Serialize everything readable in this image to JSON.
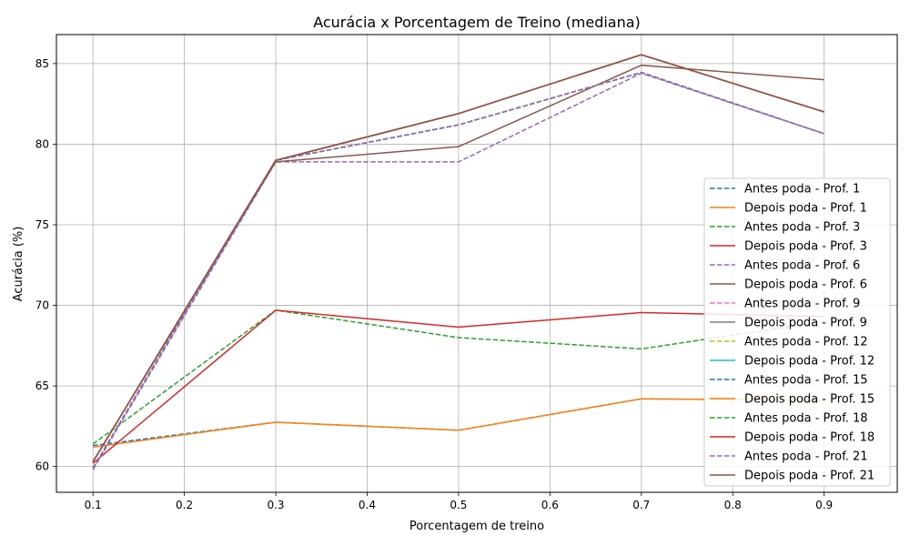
{
  "chart_data": {
    "type": "line",
    "title": "Acurácia x Porcentagem de Treino (mediana)",
    "xlabel": "Porcentagem de treino",
    "ylabel": "Acurácia (%)",
    "xlim": [
      0.06,
      0.98
    ],
    "ylim": [
      58.4,
      86.8
    ],
    "x": [
      0.1,
      0.3,
      0.5,
      0.7,
      0.9
    ],
    "xticks": [
      0.1,
      0.2,
      0.3,
      0.4,
      0.5,
      0.6,
      0.7,
      0.8,
      0.9
    ],
    "xtick_labels": [
      "0.1",
      "0.2",
      "0.3",
      "0.4",
      "0.5",
      "0.6",
      "0.7",
      "0.8",
      "0.9"
    ],
    "yticks": [
      60,
      65,
      70,
      75,
      80,
      85
    ],
    "ytick_labels": [
      "60",
      "65",
      "70",
      "75",
      "80",
      "85"
    ],
    "grid": true,
    "legend_position": "lower-right",
    "series": [
      {
        "name": "Antes poda - Prof. 1",
        "color": "#1f77b4",
        "dash": "dashed",
        "values": [
          61.3,
          62.75,
          62.25,
          64.2,
          64.1
        ]
      },
      {
        "name": "Depois poda - Prof. 1",
        "color": "#ff7f0e",
        "dash": "solid",
        "values": [
          61.2,
          62.75,
          62.25,
          64.2,
          64.1
        ]
      },
      {
        "name": "Antes poda - Prof. 3",
        "color": "#2ca02c",
        "dash": "dashed",
        "values": [
          61.4,
          69.7,
          68.0,
          67.3,
          69.0
        ]
      },
      {
        "name": "Depois poda - Prof. 3",
        "color": "#d62728",
        "dash": "solid",
        "values": [
          60.2,
          69.7,
          68.65,
          69.55,
          69.3
        ]
      },
      {
        "name": "Antes poda - Prof. 6",
        "color": "#9467bd",
        "dash": "dashed",
        "values": [
          59.8,
          78.9,
          78.9,
          84.4,
          80.65
        ]
      },
      {
        "name": "Depois poda - Prof. 6",
        "color": "#8c564b",
        "dash": "solid",
        "values": [
          60.3,
          78.9,
          79.85,
          84.9,
          84.0
        ]
      },
      {
        "name": "Antes poda - Prof. 9",
        "color": "#e377c2",
        "dash": "dashed",
        "values": [
          59.9,
          79.0,
          81.2,
          84.45,
          80.65
        ]
      },
      {
        "name": "Depois poda - Prof. 9",
        "color": "#7f7f7f",
        "dash": "solid",
        "values": [
          60.3,
          79.0,
          81.9,
          85.55,
          82.0
        ]
      },
      {
        "name": "Antes poda - Prof. 12",
        "color": "#bcbd22",
        "dash": "dashed",
        "values": [
          59.9,
          79.0,
          81.2,
          84.45,
          80.65
        ]
      },
      {
        "name": "Depois poda - Prof. 12",
        "color": "#17becf",
        "dash": "solid",
        "values": [
          60.3,
          79.0,
          81.9,
          85.55,
          82.0
        ]
      },
      {
        "name": "Antes poda - Prof. 15",
        "color": "#1f77b4",
        "dash": "dashed",
        "values": [
          59.9,
          79.0,
          81.2,
          84.45,
          80.65
        ]
      },
      {
        "name": "Depois poda - Prof. 15",
        "color": "#ff7f0e",
        "dash": "solid",
        "values": [
          60.3,
          79.0,
          81.9,
          85.55,
          82.0
        ]
      },
      {
        "name": "Antes poda - Prof. 18",
        "color": "#2ca02c",
        "dash": "dashed",
        "values": [
          59.9,
          79.0,
          81.2,
          84.45,
          80.65
        ]
      },
      {
        "name": "Depois poda - Prof. 18",
        "color": "#d62728",
        "dash": "solid",
        "values": [
          60.3,
          79.0,
          81.9,
          85.55,
          82.0
        ]
      },
      {
        "name": "Antes poda - Prof. 21",
        "color": "#9467bd",
        "dash": "dashed",
        "values": [
          59.9,
          79.0,
          81.2,
          84.45,
          80.65
        ]
      },
      {
        "name": "Depois poda - Prof. 21",
        "color": "#8c564b",
        "dash": "solid",
        "values": [
          60.3,
          79.0,
          81.9,
          85.55,
          82.0
        ]
      }
    ]
  }
}
